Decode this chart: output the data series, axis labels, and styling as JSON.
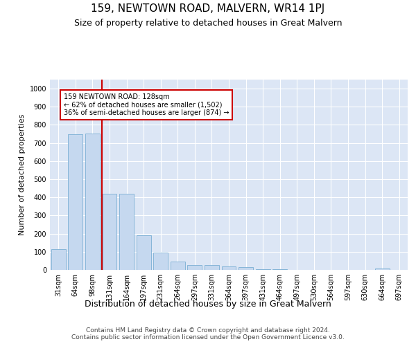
{
  "title": "159, NEWTOWN ROAD, MALVERN, WR14 1PJ",
  "subtitle": "Size of property relative to detached houses in Great Malvern",
  "xlabel": "Distribution of detached houses by size in Great Malvern",
  "ylabel": "Number of detached properties",
  "categories": [
    "31sqm",
    "64sqm",
    "98sqm",
    "131sqm",
    "164sqm",
    "197sqm",
    "231sqm",
    "264sqm",
    "297sqm",
    "331sqm",
    "364sqm",
    "397sqm",
    "431sqm",
    "464sqm",
    "497sqm",
    "530sqm",
    "564sqm",
    "597sqm",
    "630sqm",
    "664sqm",
    "697sqm"
  ],
  "values": [
    113,
    748,
    752,
    420,
    420,
    190,
    97,
    46,
    26,
    26,
    18,
    17,
    5,
    3,
    1,
    0,
    0,
    0,
    0,
    7,
    0
  ],
  "bar_color": "#c5d8ef",
  "bar_edge_color": "#7bafd4",
  "vline_color": "#cc0000",
  "annotation_text": "159 NEWTOWN ROAD: 128sqm\n← 62% of detached houses are smaller (1,502)\n36% of semi-detached houses are larger (874) →",
  "annotation_box_color": "#ffffff",
  "annotation_box_edge": "#cc0000",
  "ylim": [
    0,
    1050
  ],
  "yticks": [
    0,
    100,
    200,
    300,
    400,
    500,
    600,
    700,
    800,
    900,
    1000
  ],
  "background_color": "#dce6f5",
  "footer": "Contains HM Land Registry data © Crown copyright and database right 2024.\nContains public sector information licensed under the Open Government Licence v3.0.",
  "title_fontsize": 11,
  "subtitle_fontsize": 9,
  "xlabel_fontsize": 9,
  "ylabel_fontsize": 8,
  "tick_fontsize": 7,
  "footer_fontsize": 6.5
}
